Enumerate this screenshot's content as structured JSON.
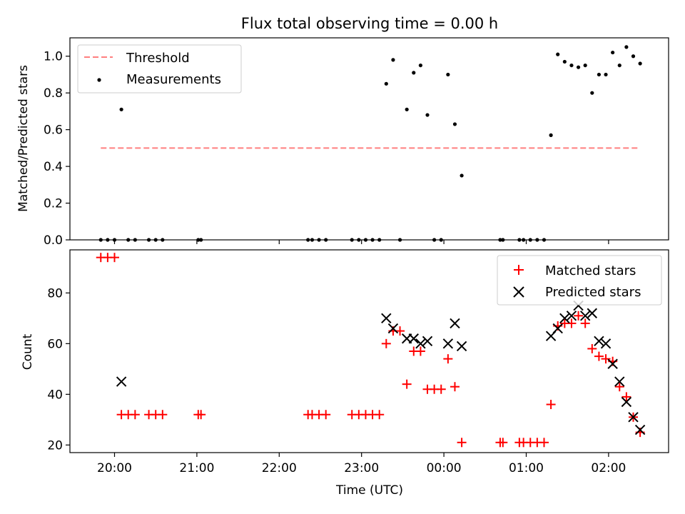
{
  "colors": {
    "threshold": "#ff7f7f",
    "measurement": "#000000",
    "matched": "#ff0000",
    "predicted": "#000000"
  },
  "chart_data": [
    {
      "type": "scatter",
      "title": "Flux total observing time = 0.00 h",
      "xlabel": "",
      "ylabel": "Matched/Predicted stars",
      "ylim": [
        0,
        1.1
      ],
      "yticks": [
        "0.0",
        "0.2",
        "0.4",
        "0.6",
        "0.8",
        "1.0"
      ],
      "legend_position": "top-left",
      "legend": [
        "Threshold",
        "Measurements"
      ],
      "threshold": {
        "name": "Threshold",
        "y": 0.5,
        "x_start": "19:50",
        "x_end": "02:22"
      },
      "series": [
        {
          "name": "Measurements",
          "points": [
            [
              "19:50",
              0.0
            ],
            [
              "19:55",
              0.0
            ],
            [
              "20:00",
              0.0
            ],
            [
              "20:05",
              0.71
            ],
            [
              "20:10",
              0.0
            ],
            [
              "20:15",
              0.0
            ],
            [
              "20:25",
              0.0
            ],
            [
              "20:30",
              0.0
            ],
            [
              "20:35",
              0.0
            ],
            [
              "21:01",
              0.0
            ],
            [
              "21:03",
              0.0
            ],
            [
              "22:21",
              0.0
            ],
            [
              "22:24",
              0.0
            ],
            [
              "22:29",
              0.0
            ],
            [
              "22:34",
              0.0
            ],
            [
              "22:53",
              0.0
            ],
            [
              "22:58",
              0.0
            ],
            [
              "23:03",
              0.0
            ],
            [
              "23:08",
              0.0
            ],
            [
              "23:13",
              0.0
            ],
            [
              "23:18",
              0.85
            ],
            [
              "23:23",
              0.98
            ],
            [
              "23:28",
              0.0
            ],
            [
              "23:33",
              0.71
            ],
            [
              "23:38",
              0.91
            ],
            [
              "23:43",
              0.95
            ],
            [
              "23:48",
              0.68
            ],
            [
              "23:53",
              0.0
            ],
            [
              "23:58",
              0.0
            ],
            [
              "00:03",
              0.9
            ],
            [
              "00:08",
              0.63
            ],
            [
              "00:13",
              0.35
            ],
            [
              "00:41",
              0.0
            ],
            [
              "00:43",
              0.0
            ],
            [
              "00:55",
              0.0
            ],
            [
              "00:58",
              0.0
            ],
            [
              "01:03",
              0.0
            ],
            [
              "01:08",
              0.0
            ],
            [
              "01:13",
              0.0
            ],
            [
              "01:18",
              0.57
            ],
            [
              "01:23",
              1.01
            ],
            [
              "01:28",
              0.97
            ],
            [
              "01:33",
              0.95
            ],
            [
              "01:38",
              0.94
            ],
            [
              "01:43",
              0.95
            ],
            [
              "01:48",
              0.8
            ],
            [
              "01:53",
              0.9
            ],
            [
              "01:58",
              0.9
            ],
            [
              "02:03",
              1.02
            ],
            [
              "02:08",
              0.95
            ],
            [
              "02:13",
              1.05
            ],
            [
              "02:18",
              1.0
            ],
            [
              "02:23",
              0.96
            ]
          ]
        }
      ]
    },
    {
      "type": "scatter",
      "title": "",
      "xlabel": "Time (UTC)",
      "ylabel": "Count",
      "ylim": [
        17,
        97
      ],
      "yticks": [
        "20",
        "40",
        "60",
        "80"
      ],
      "xticks": [
        "20:00",
        "21:00",
        "22:00",
        "23:00",
        "00:00",
        "01:00",
        "02:00"
      ],
      "legend_position": "top-right",
      "legend": [
        "Matched stars",
        "Predicted stars"
      ],
      "series": [
        {
          "name": "Matched stars",
          "points": [
            [
              "19:50",
              94
            ],
            [
              "19:55",
              94
            ],
            [
              "20:00",
              94
            ],
            [
              "20:05",
              32
            ],
            [
              "20:10",
              32
            ],
            [
              "20:15",
              32
            ],
            [
              "20:25",
              32
            ],
            [
              "20:30",
              32
            ],
            [
              "20:35",
              32
            ],
            [
              "21:01",
              32
            ],
            [
              "21:03",
              32
            ],
            [
              "22:21",
              32
            ],
            [
              "22:24",
              32
            ],
            [
              "22:29",
              32
            ],
            [
              "22:34",
              32
            ],
            [
              "22:53",
              32
            ],
            [
              "22:58",
              32
            ],
            [
              "23:03",
              32
            ],
            [
              "23:08",
              32
            ],
            [
              "23:13",
              32
            ],
            [
              "23:18",
              60
            ],
            [
              "23:23",
              65
            ],
            [
              "23:28",
              65
            ],
            [
              "23:33",
              44
            ],
            [
              "23:38",
              57
            ],
            [
              "23:43",
              57
            ],
            [
              "23:48",
              42
            ],
            [
              "23:53",
              42
            ],
            [
              "23:58",
              42
            ],
            [
              "00:03",
              54
            ],
            [
              "00:08",
              43
            ],
            [
              "00:13",
              21
            ],
            [
              "00:41",
              21
            ],
            [
              "00:43",
              21
            ],
            [
              "00:55",
              21
            ],
            [
              "00:58",
              21
            ],
            [
              "01:03",
              21
            ],
            [
              "01:08",
              21
            ],
            [
              "01:13",
              21
            ],
            [
              "01:18",
              36
            ],
            [
              "01:23",
              67
            ],
            [
              "01:28",
              68
            ],
            [
              "01:33",
              68
            ],
            [
              "01:38",
              71
            ],
            [
              "01:43",
              68
            ],
            [
              "01:48",
              58
            ],
            [
              "01:53",
              55
            ],
            [
              "01:58",
              54
            ],
            [
              "02:03",
              53
            ],
            [
              "02:08",
              43
            ],
            [
              "02:13",
              39
            ],
            [
              "02:18",
              31
            ],
            [
              "02:23",
              25
            ]
          ]
        },
        {
          "name": "Predicted stars",
          "points": [
            [
              "20:05",
              45
            ],
            [
              "23:18",
              70
            ],
            [
              "23:23",
              66
            ],
            [
              "23:33",
              62
            ],
            [
              "23:38",
              62
            ],
            [
              "23:43",
              60
            ],
            [
              "23:48",
              61
            ],
            [
              "00:03",
              60
            ],
            [
              "00:08",
              68
            ],
            [
              "00:13",
              59
            ],
            [
              "01:18",
              63
            ],
            [
              "01:23",
              66
            ],
            [
              "01:28",
              70
            ],
            [
              "01:33",
              71
            ],
            [
              "01:38",
              75
            ],
            [
              "01:43",
              71
            ],
            [
              "01:48",
              72
            ],
            [
              "01:53",
              61
            ],
            [
              "01:58",
              60
            ],
            [
              "02:03",
              52
            ],
            [
              "02:08",
              45
            ],
            [
              "02:13",
              37
            ],
            [
              "02:18",
              31
            ],
            [
              "02:23",
              26
            ]
          ]
        }
      ]
    }
  ]
}
